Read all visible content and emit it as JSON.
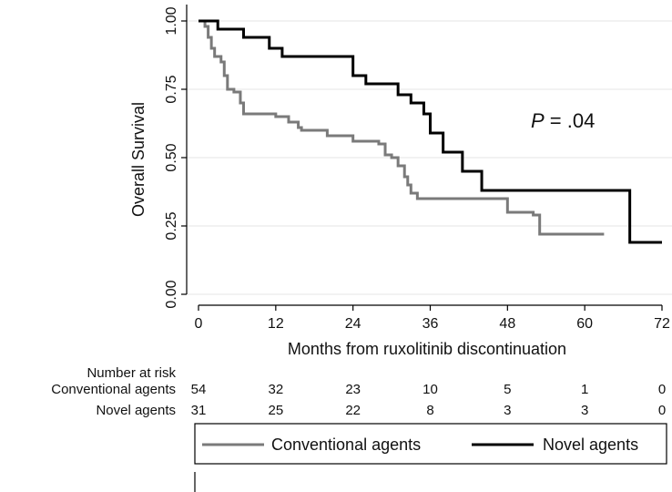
{
  "chart_data": {
    "type": "line",
    "subtype": "kaplan-meier-step",
    "xlabel": "Months from ruxolitinib discontinuation",
    "ylabel": "Overall Survival",
    "xlim": [
      0,
      72
    ],
    "ylim": [
      0,
      1
    ],
    "x_ticks": [
      "0",
      "12",
      "24",
      "36",
      "48",
      "60",
      "72"
    ],
    "y_ticks": [
      "0.00",
      "0.25",
      "0.50",
      "0.75",
      "1.00"
    ],
    "grid": "horizontal",
    "annotation": {
      "italic": "P",
      "text": " = .04"
    },
    "series": [
      {
        "name": "Conventional agents",
        "color": "#7a7a7a",
        "points": [
          [
            0,
            1.0
          ],
          [
            1,
            0.98
          ],
          [
            1.5,
            0.94
          ],
          [
            2,
            0.9
          ],
          [
            2.5,
            0.87
          ],
          [
            3.5,
            0.85
          ],
          [
            4,
            0.8
          ],
          [
            4.5,
            0.75
          ],
          [
            5.5,
            0.74
          ],
          [
            6.5,
            0.7
          ],
          [
            7,
            0.66
          ],
          [
            12,
            0.65
          ],
          [
            14,
            0.63
          ],
          [
            15.5,
            0.61
          ],
          [
            16,
            0.6
          ],
          [
            20,
            0.58
          ],
          [
            24,
            0.56
          ],
          [
            28,
            0.55
          ],
          [
            29,
            0.51
          ],
          [
            30,
            0.5
          ],
          [
            31,
            0.47
          ],
          [
            32,
            0.43
          ],
          [
            32.5,
            0.4
          ],
          [
            33,
            0.37
          ],
          [
            34,
            0.35
          ],
          [
            47,
            0.35
          ],
          [
            48,
            0.3
          ],
          [
            52,
            0.29
          ],
          [
            53,
            0.22
          ],
          [
            63,
            0.22
          ]
        ]
      },
      {
        "name": "Novel agents",
        "color": "#000000",
        "points": [
          [
            0,
            1.0
          ],
          [
            2,
            1.0
          ],
          [
            3,
            0.97
          ],
          [
            6,
            0.97
          ],
          [
            7,
            0.94
          ],
          [
            10,
            0.94
          ],
          [
            11,
            0.9
          ],
          [
            13,
            0.87
          ],
          [
            23,
            0.87
          ],
          [
            24,
            0.8
          ],
          [
            26,
            0.77
          ],
          [
            30,
            0.77
          ],
          [
            31,
            0.73
          ],
          [
            33,
            0.7
          ],
          [
            35,
            0.66
          ],
          [
            36,
            0.59
          ],
          [
            38,
            0.52
          ],
          [
            41,
            0.45
          ],
          [
            44,
            0.38
          ],
          [
            66,
            0.38
          ],
          [
            67,
            0.19
          ],
          [
            72,
            0.19
          ]
        ]
      }
    ]
  },
  "risk_table": {
    "title": "Number at risk",
    "rows": [
      {
        "label": "Conventional agents",
        "values": [
          "54",
          "32",
          "23",
          "10",
          "5",
          "1",
          "0"
        ]
      },
      {
        "label": "Novel agents",
        "values": [
          "31",
          "25",
          "22",
          "8",
          "3",
          "3",
          "0"
        ]
      }
    ]
  },
  "legend": {
    "items": [
      {
        "label": "Conventional agents",
        "color": "#7a7a7a"
      },
      {
        "label": "Novel agents",
        "color": "#000000"
      }
    ]
  }
}
